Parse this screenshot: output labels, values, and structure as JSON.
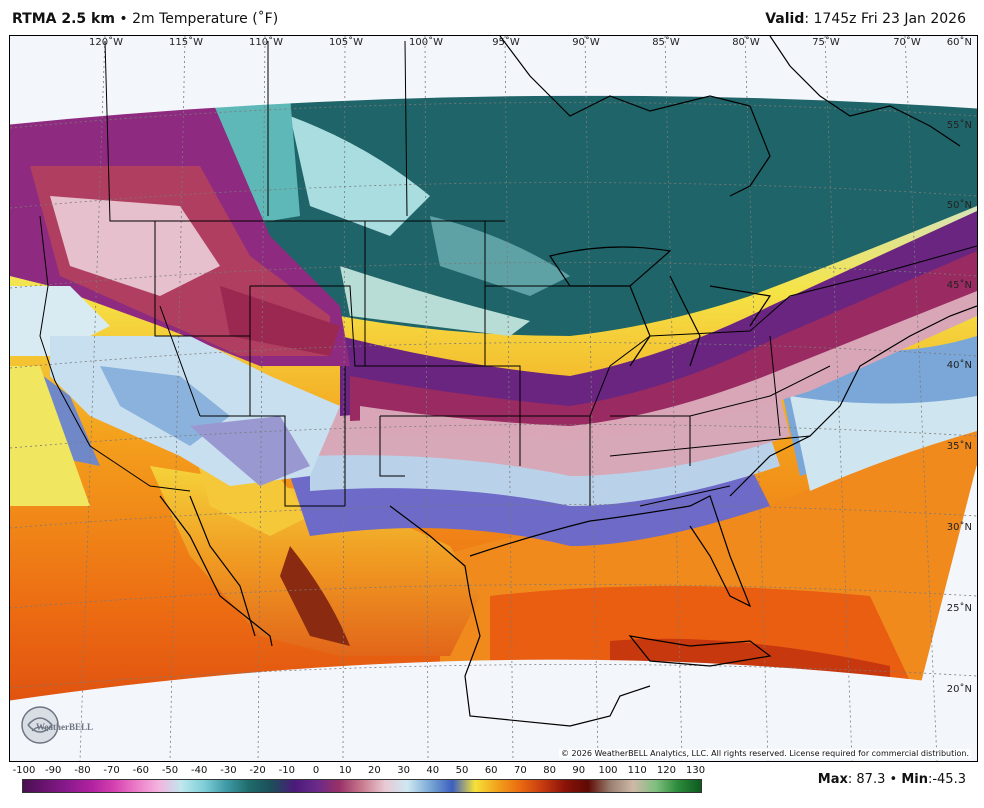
{
  "header": {
    "model": "RTMA 2.5 km",
    "bullet": "•",
    "field": "2m Temperature (˚F)",
    "valid_label": "Valid",
    "valid_value": ": 1745z Fri 23 Jan 2026"
  },
  "map": {
    "lon_labels": [
      "120˚W",
      "115˚W",
      "110˚W",
      "105˚W",
      "100˚W",
      "95˚W",
      "90˚W",
      "85˚W",
      "80˚W",
      "75˚W",
      "70˚W"
    ],
    "lat_labels": [
      "60˚N",
      "55˚N",
      "50˚N",
      "45˚N",
      "40˚N",
      "35˚N",
      "30˚N",
      "25˚N",
      "20˚N"
    ],
    "copyright": "© 2026 WeatherBELL Analytics, LLC. All rights reserved. License required for commercial distribution.",
    "logo_text": "WeatherBELL"
  },
  "colorbar": {
    "ticks": [
      "-100",
      "-90",
      "-80",
      "-70",
      "-60",
      "-50",
      "-40",
      "-30",
      "-20",
      "-10",
      "0",
      "10",
      "20",
      "30",
      "40",
      "50",
      "60",
      "70",
      "80",
      "90",
      "100",
      "110",
      "120",
      "130"
    ],
    "colors": [
      "#4a0f4f",
      "#6b1472",
      "#8c1a8e",
      "#b0219f",
      "#d43fb0",
      "#ec7bc8",
      "#f4b3de",
      "#bfe7ee",
      "#7fcfd8",
      "#3f9aa6",
      "#1f6b6b",
      "#1c4e58",
      "#4b1a7a",
      "#6a2a8a",
      "#9a3168",
      "#c97a8e",
      "#e8c8d2",
      "#cfe8f2",
      "#7aa9d6",
      "#3d5fbf",
      "#f6e23a",
      "#f2a11c",
      "#ea6a10",
      "#c53a10",
      "#8a1208",
      "#5e0a04",
      "#9a8070",
      "#cfb9a8",
      "#7fbf7f",
      "#2a8a3a",
      "#0e5a20"
    ]
  },
  "extremes": {
    "max_label": "Max",
    "max_value": ": 87.3",
    "separator": "•",
    "min_label": "Min",
    "min_value": ":-45.3"
  }
}
